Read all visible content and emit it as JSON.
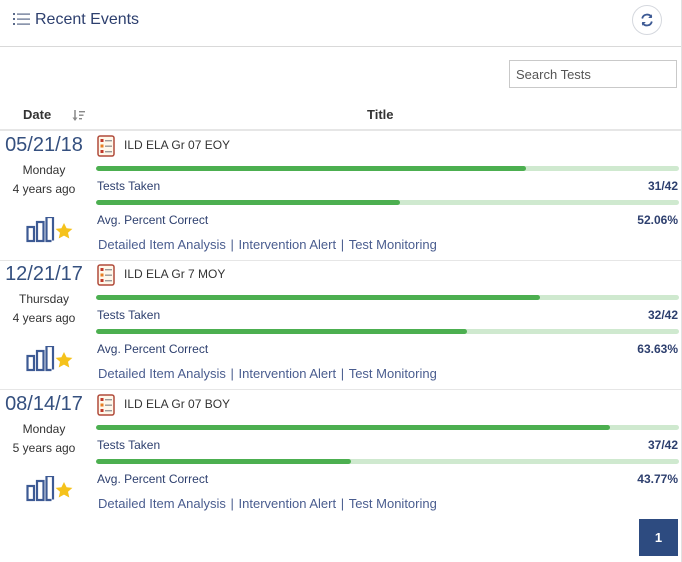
{
  "header": {
    "title": "Recent Events"
  },
  "search": {
    "placeholder": "Search Tests"
  },
  "table": {
    "date_header": "Date",
    "title_header": "Title"
  },
  "colors": {
    "accent": "#2d4b80",
    "bar_fill": "#4caf50",
    "bar_track": "#cfe9cf",
    "date_text": "#35507f",
    "star": "#f5c21b"
  },
  "icons": [
    "list-icon",
    "refresh-icon",
    "sort-icon",
    "test-doc-icon",
    "bar-chart-star-icon"
  ],
  "events": [
    {
      "date": "05/21/18",
      "weekday": "Monday",
      "ago": "4 years ago",
      "title": "ILD ELA Gr 07 EOY",
      "bar_primary_fraction": 0.737,
      "tests_taken_label": "Tests Taken",
      "tests_taken": "31/42",
      "avg_label": "Avg. Percent Correct",
      "avg": "52.06%",
      "links": [
        "Detailed Item Analysis",
        "Intervention Alert",
        "Test Monitoring"
      ]
    },
    {
      "date": "12/21/17",
      "weekday": "Thursday",
      "ago": "4 years ago",
      "title": "ILD ELA Gr 7 MOY",
      "bar_primary_fraction": 0.762,
      "tests_taken_label": "Tests Taken",
      "tests_taken": "32/42",
      "avg_label": "Avg. Percent Correct",
      "avg": "63.63%",
      "links": [
        "Detailed Item Analysis",
        "Intervention Alert",
        "Test Monitoring"
      ]
    },
    {
      "date": "08/14/17",
      "weekday": "Monday",
      "ago": "5 years ago",
      "title": "ILD ELA Gr 07 BOY",
      "bar_primary_fraction": 0.881,
      "tests_taken_label": "Tests Taken",
      "tests_taken": "37/42",
      "avg_label": "Avg. Percent Correct",
      "avg": "43.77%",
      "links": [
        "Detailed Item Analysis",
        "Intervention Alert",
        "Test Monitoring"
      ]
    }
  ],
  "pagination": {
    "current": "1"
  }
}
